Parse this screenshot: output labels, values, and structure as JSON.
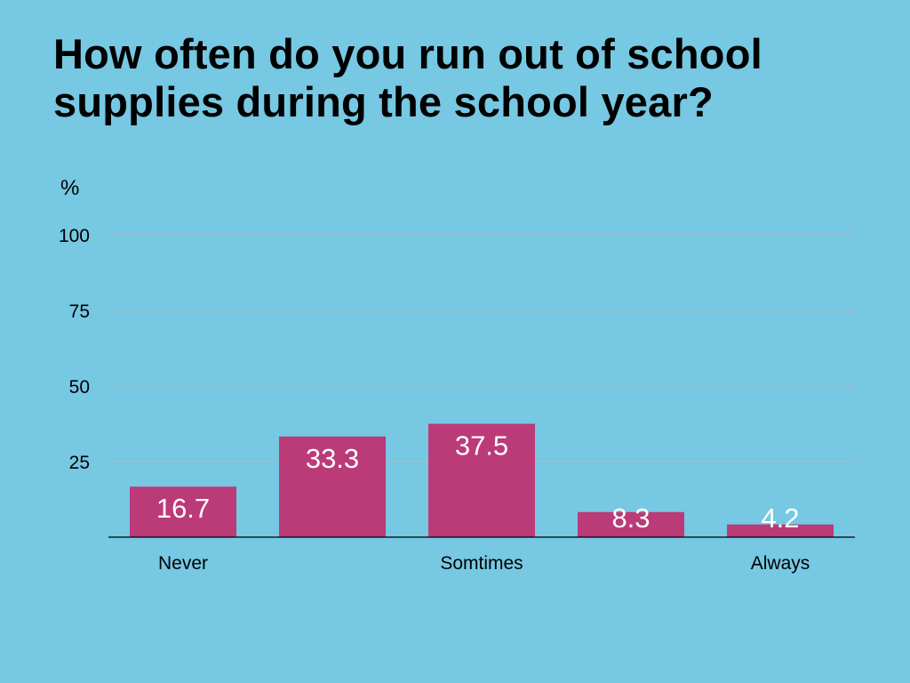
{
  "chart_data": {
    "type": "bar",
    "title": "How often do you run out of school supplies during the school year?",
    "ylabel": "%",
    "xlabel": "",
    "categories": [
      "Never",
      "",
      "Somtimes",
      "",
      "Always"
    ],
    "values": [
      16.7,
      33.3,
      37.5,
      8.3,
      4.2
    ],
    "value_labels": [
      "16.7",
      "33.3",
      "37.5",
      "8.3",
      "4.2"
    ],
    "ylim": [
      0,
      100
    ],
    "yticks": [
      25,
      50,
      75,
      100
    ],
    "ytick_labels": [
      "25",
      "50",
      "75",
      "100"
    ],
    "grid": true,
    "legend": "none",
    "colors": {
      "background": "#76C8E3",
      "bar": "#BB3A78",
      "grid": "#B8B8B8",
      "value_label": "#FFFFFF"
    }
  }
}
